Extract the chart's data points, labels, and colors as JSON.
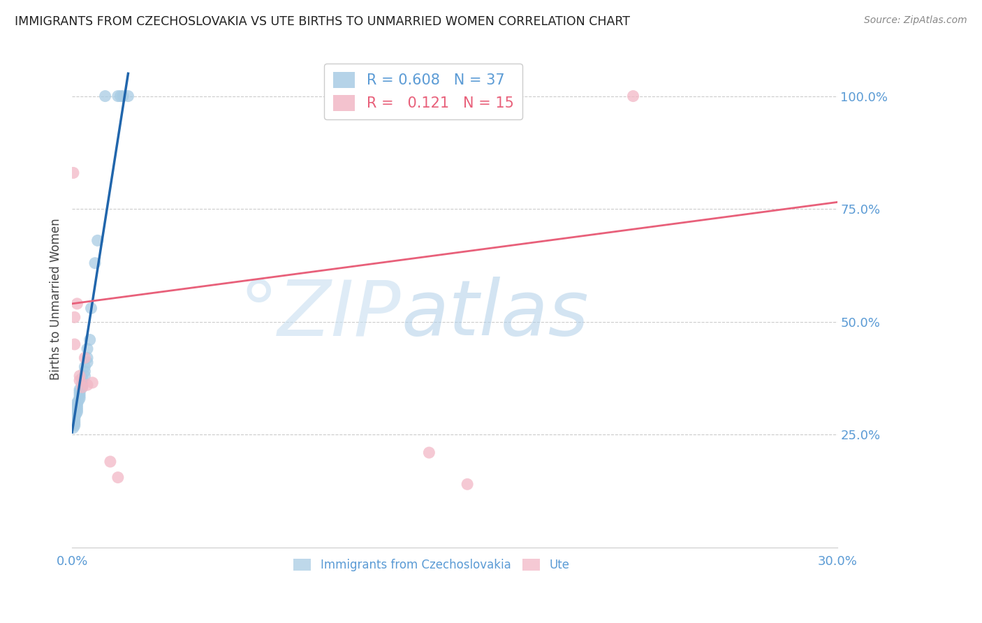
{
  "title": "IMMIGRANTS FROM CZECHOSLOVAKIA VS UTE BIRTHS TO UNMARRIED WOMEN CORRELATION CHART",
  "source": "Source: ZipAtlas.com",
  "ylabel": "Births to Unmarried Women",
  "legend_labels": [
    "Immigrants from Czechoslovakia",
    "Ute"
  ],
  "r_blue": 0.608,
  "n_blue": 37,
  "r_pink": 0.121,
  "n_pink": 15,
  "blue_color": "#a8cce4",
  "pink_color": "#f2b8c6",
  "blue_line_color": "#2166ac",
  "pink_line_color": "#e8607a",
  "axis_color": "#5b9bd5",
  "watermark_zip": "°ZIP",
  "watermark_atlas": "atlas",
  "xlim": [
    0.0,
    0.3
  ],
  "ylim": [
    0.0,
    1.1
  ],
  "yticks": [
    0.25,
    0.5,
    0.75,
    1.0
  ],
  "ytick_labels": [
    "25.0%",
    "50.0%",
    "75.0%",
    "100.0%"
  ],
  "xticks": [
    0.0,
    0.05,
    0.1,
    0.15,
    0.2,
    0.25,
    0.3
  ],
  "xtick_labels": [
    "0.0%",
    "",
    "",
    "",
    "",
    "",
    "30.0%"
  ],
  "blue_x": [
    0.0005,
    0.001,
    0.001,
    0.001,
    0.001,
    0.001,
    0.0015,
    0.002,
    0.002,
    0.002,
    0.002,
    0.002,
    0.0025,
    0.003,
    0.003,
    0.003,
    0.003,
    0.003,
    0.004,
    0.004,
    0.004,
    0.004,
    0.005,
    0.005,
    0.005,
    0.006,
    0.006,
    0.006,
    0.007,
    0.0075,
    0.009,
    0.01,
    0.013,
    0.018,
    0.019,
    0.02,
    0.022
  ],
  "blue_y": [
    0.265,
    0.27,
    0.275,
    0.28,
    0.285,
    0.29,
    0.295,
    0.3,
    0.305,
    0.31,
    0.315,
    0.32,
    0.325,
    0.33,
    0.335,
    0.34,
    0.345,
    0.35,
    0.355,
    0.36,
    0.365,
    0.375,
    0.38,
    0.39,
    0.4,
    0.41,
    0.42,
    0.44,
    0.46,
    0.53,
    0.63,
    0.68,
    1.0,
    1.0,
    1.0,
    1.0,
    1.0
  ],
  "pink_x": [
    0.0005,
    0.001,
    0.001,
    0.002,
    0.003,
    0.003,
    0.004,
    0.005,
    0.006,
    0.008,
    0.015,
    0.018,
    0.14,
    0.155,
    0.22
  ],
  "pink_y": [
    0.83,
    0.45,
    0.51,
    0.54,
    0.37,
    0.38,
    0.355,
    0.42,
    0.36,
    0.365,
    0.19,
    0.155,
    0.21,
    0.14,
    1.0
  ],
  "blue_trend_x": [
    0.0,
    0.022
  ],
  "blue_trend_y": [
    0.255,
    1.05
  ],
  "pink_trend_x": [
    0.0,
    0.3
  ],
  "pink_trend_y": [
    0.54,
    0.765
  ]
}
